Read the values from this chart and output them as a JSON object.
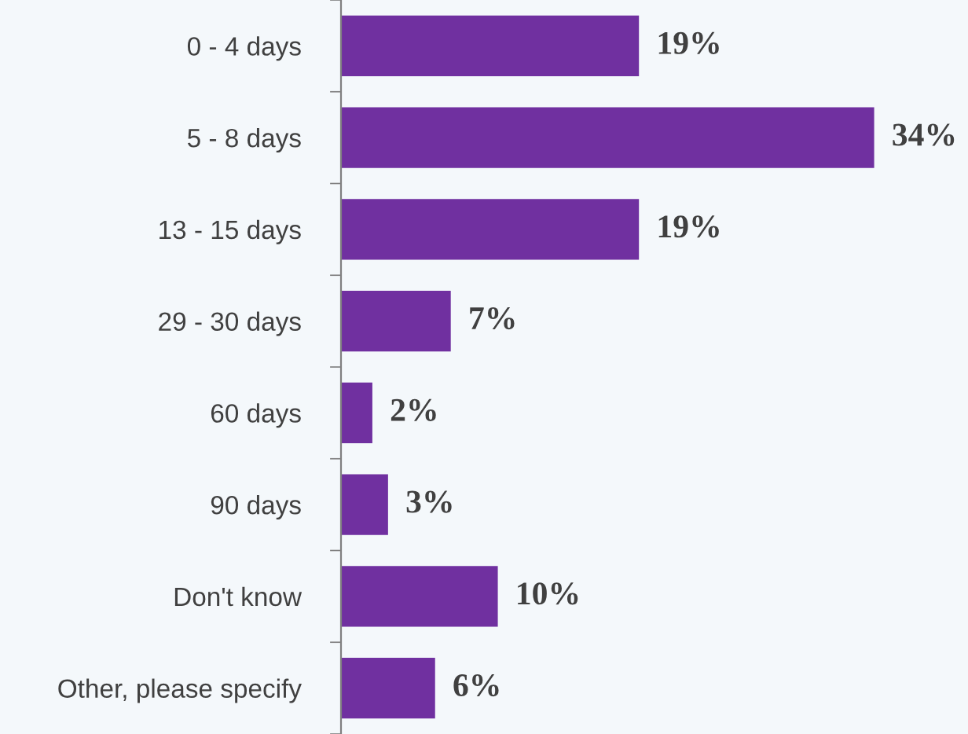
{
  "chart_data": {
    "type": "bar",
    "orientation": "horizontal",
    "categories": [
      "0 - 4 days",
      "5 - 8 days",
      "13 - 15 days",
      "29 - 30 days",
      "60 days",
      "90 days",
      "Don't know",
      "Other, please specify"
    ],
    "values": [
      19,
      34,
      19,
      7,
      2,
      3,
      10,
      6
    ],
    "value_labels": [
      "19%",
      "34%",
      "19%",
      "7%",
      "2%",
      "3%",
      "10%",
      "6%"
    ],
    "color": "#7030a0",
    "grid": false,
    "legend": false
  }
}
